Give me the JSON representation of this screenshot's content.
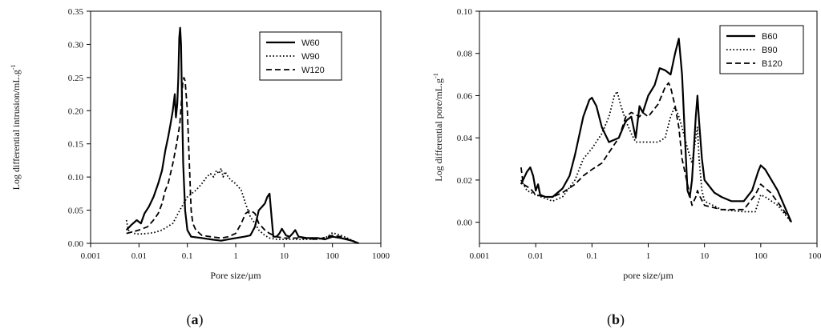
{
  "chart_data": [
    {
      "type": "line",
      "caption": {
        "open": "(",
        "letter": "a",
        "close": ")"
      },
      "xlabel": "Pore size/µm",
      "ylabel": "Log differential intrusion/mL.g",
      "ylabel_sup": "-1",
      "x_scale": "log",
      "xlim": [
        0.001,
        1000
      ],
      "ylim": [
        0.0,
        0.35
      ],
      "xticks": [
        "0.001",
        "0.01",
        "0.1",
        "1",
        "10",
        "100",
        "1000"
      ],
      "yticks": [
        "0.00",
        "0.05",
        "0.10",
        "0.15",
        "0.20",
        "0.25",
        "0.30",
        "0.35"
      ],
      "legend_position": "top-right",
      "series": [
        {
          "name": "W60",
          "style": "solid",
          "points": [
            [
              0.0055,
              0.02
            ],
            [
              0.007,
              0.028
            ],
            [
              0.009,
              0.035
            ],
            [
              0.011,
              0.03
            ],
            [
              0.013,
              0.045
            ],
            [
              0.016,
              0.055
            ],
            [
              0.02,
              0.07
            ],
            [
              0.025,
              0.09
            ],
            [
              0.03,
              0.11
            ],
            [
              0.035,
              0.14
            ],
            [
              0.04,
              0.16
            ],
            [
              0.045,
              0.18
            ],
            [
              0.05,
              0.2
            ],
            [
              0.055,
              0.225
            ],
            [
              0.058,
              0.19
            ],
            [
              0.062,
              0.21
            ],
            [
              0.065,
              0.25
            ],
            [
              0.068,
              0.31
            ],
            [
              0.071,
              0.325
            ],
            [
              0.074,
              0.3
            ],
            [
              0.078,
              0.2
            ],
            [
              0.082,
              0.12
            ],
            [
              0.09,
              0.05
            ],
            [
              0.1,
              0.02
            ],
            [
              0.12,
              0.01
            ],
            [
              0.2,
              0.008
            ],
            [
              0.3,
              0.006
            ],
            [
              0.5,
              0.004
            ],
            [
              0.7,
              0.006
            ],
            [
              1,
              0.008
            ],
            [
              1.5,
              0.01
            ],
            [
              2,
              0.012
            ],
            [
              2.5,
              0.025
            ],
            [
              3,
              0.05
            ],
            [
              3.5,
              0.055
            ],
            [
              4,
              0.06
            ],
            [
              4.5,
              0.07
            ],
            [
              5,
              0.075
            ],
            [
              5.5,
              0.04
            ],
            [
              6,
              0.01
            ],
            [
              7,
              0.01
            ],
            [
              8,
              0.015
            ],
            [
              9,
              0.022
            ],
            [
              11,
              0.012
            ],
            [
              13,
              0.01
            ],
            [
              15,
              0.015
            ],
            [
              17,
              0.02
            ],
            [
              20,
              0.01
            ],
            [
              30,
              0.008
            ],
            [
              50,
              0.008
            ],
            [
              70,
              0.006
            ],
            [
              100,
              0.01
            ],
            [
              150,
              0.008
            ],
            [
              250,
              0.004
            ],
            [
              350,
              0.0
            ]
          ]
        },
        {
          "name": "W90",
          "style": "dotted",
          "points": [
            [
              0.0055,
              0.035
            ],
            [
              0.006,
              0.02
            ],
            [
              0.008,
              0.015
            ],
            [
              0.01,
              0.014
            ],
            [
              0.015,
              0.015
            ],
            [
              0.02,
              0.016
            ],
            [
              0.03,
              0.02
            ],
            [
              0.05,
              0.03
            ],
            [
              0.07,
              0.05
            ],
            [
              0.1,
              0.07
            ],
            [
              0.15,
              0.08
            ],
            [
              0.2,
              0.09
            ],
            [
              0.25,
              0.1
            ],
            [
              0.3,
              0.105
            ],
            [
              0.35,
              0.1
            ],
            [
              0.4,
              0.11
            ],
            [
              0.45,
              0.105
            ],
            [
              0.5,
              0.113
            ],
            [
              0.55,
              0.1
            ],
            [
              0.6,
              0.108
            ],
            [
              0.7,
              0.1
            ],
            [
              0.8,
              0.095
            ],
            [
              1,
              0.09
            ],
            [
              1.3,
              0.08
            ],
            [
              1.6,
              0.06
            ],
            [
              2,
              0.04
            ],
            [
              2.5,
              0.03
            ],
            [
              3,
              0.02
            ],
            [
              4,
              0.012
            ],
            [
              5,
              0.008
            ],
            [
              7,
              0.006
            ],
            [
              10,
              0.006
            ],
            [
              20,
              0.006
            ],
            [
              50,
              0.006
            ],
            [
              80,
              0.01
            ],
            [
              100,
              0.016
            ],
            [
              150,
              0.012
            ],
            [
              250,
              0.005
            ],
            [
              350,
              0.0
            ]
          ]
        },
        {
          "name": "W120",
          "style": "dashed",
          "points": [
            [
              0.0055,
              0.015
            ],
            [
              0.008,
              0.018
            ],
            [
              0.01,
              0.02
            ],
            [
              0.015,
              0.025
            ],
            [
              0.02,
              0.035
            ],
            [
              0.025,
              0.045
            ],
            [
              0.03,
              0.06
            ],
            [
              0.035,
              0.08
            ],
            [
              0.04,
              0.09
            ],
            [
              0.05,
              0.12
            ],
            [
              0.06,
              0.15
            ],
            [
              0.07,
              0.18
            ],
            [
              0.075,
              0.21
            ],
            [
              0.08,
              0.24
            ],
            [
              0.085,
              0.25
            ],
            [
              0.09,
              0.245
            ],
            [
              0.1,
              0.2
            ],
            [
              0.11,
              0.12
            ],
            [
              0.12,
              0.05
            ],
            [
              0.13,
              0.03
            ],
            [
              0.15,
              0.02
            ],
            [
              0.2,
              0.012
            ],
            [
              0.3,
              0.01
            ],
            [
              0.5,
              0.008
            ],
            [
              0.7,
              0.01
            ],
            [
              1,
              0.015
            ],
            [
              1.3,
              0.03
            ],
            [
              1.6,
              0.045
            ],
            [
              2,
              0.05
            ],
            [
              2.5,
              0.045
            ],
            [
              3,
              0.03
            ],
            [
              4,
              0.02
            ],
            [
              5,
              0.015
            ],
            [
              7,
              0.01
            ],
            [
              10,
              0.008
            ],
            [
              20,
              0.008
            ],
            [
              50,
              0.006
            ],
            [
              100,
              0.012
            ],
            [
              150,
              0.01
            ],
            [
              250,
              0.004
            ],
            [
              350,
              0.0
            ]
          ]
        }
      ]
    },
    {
      "type": "line",
      "caption": {
        "open": "(",
        "letter": "b",
        "close": ")"
      },
      "xlabel": "pore size/µm",
      "ylabel": "Log differential pore/mL.g",
      "ylabel_sup": "-1",
      "x_scale": "log",
      "xlim": [
        0.001,
        1000
      ],
      "ylim": [
        -0.01,
        0.1
      ],
      "xticks": [
        "0.001",
        "0.01",
        "0.1",
        "1",
        "10",
        "100",
        "1000"
      ],
      "yticks": [
        "0.00",
        "0.02",
        "0.04",
        "0.06",
        "0.08",
        "0.10"
      ],
      "legend_position": "top-right",
      "series": [
        {
          "name": "B60",
          "style": "solid",
          "points": [
            [
              0.0055,
              0.018
            ],
            [
              0.007,
              0.024
            ],
            [
              0.008,
              0.026
            ],
            [
              0.009,
              0.022
            ],
            [
              0.01,
              0.015
            ],
            [
              0.011,
              0.018
            ],
            [
              0.012,
              0.013
            ],
            [
              0.015,
              0.012
            ],
            [
              0.02,
              0.012
            ],
            [
              0.03,
              0.016
            ],
            [
              0.04,
              0.022
            ],
            [
              0.05,
              0.032
            ],
            [
              0.07,
              0.05
            ],
            [
              0.09,
              0.058
            ],
            [
              0.1,
              0.059
            ],
            [
              0.12,
              0.055
            ],
            [
              0.15,
              0.045
            ],
            [
              0.2,
              0.038
            ],
            [
              0.3,
              0.04
            ],
            [
              0.4,
              0.048
            ],
            [
              0.5,
              0.05
            ],
            [
              0.6,
              0.04
            ],
            [
              0.7,
              0.055
            ],
            [
              0.8,
              0.052
            ],
            [
              1,
              0.06
            ],
            [
              1.3,
              0.065
            ],
            [
              1.6,
              0.073
            ],
            [
              2,
              0.072
            ],
            [
              2.5,
              0.07
            ],
            [
              3,
              0.08
            ],
            [
              3.5,
              0.087
            ],
            [
              4,
              0.07
            ],
            [
              4.5,
              0.04
            ],
            [
              5,
              0.015
            ],
            [
              5.5,
              0.012
            ],
            [
              6,
              0.02
            ],
            [
              7,
              0.05
            ],
            [
              7.5,
              0.06
            ],
            [
              8,
              0.048
            ],
            [
              9,
              0.03
            ],
            [
              10,
              0.02
            ],
            [
              15,
              0.014
            ],
            [
              20,
              0.012
            ],
            [
              30,
              0.01
            ],
            [
              50,
              0.01
            ],
            [
              70,
              0.015
            ],
            [
              90,
              0.024
            ],
            [
              100,
              0.027
            ],
            [
              120,
              0.025
            ],
            [
              200,
              0.015
            ],
            [
              350,
              0.0
            ]
          ]
        },
        {
          "name": "B90",
          "style": "dotted",
          "points": [
            [
              0.0055,
              0.02
            ],
            [
              0.007,
              0.015
            ],
            [
              0.01,
              0.013
            ],
            [
              0.02,
              0.01
            ],
            [
              0.03,
              0.012
            ],
            [
              0.05,
              0.02
            ],
            [
              0.07,
              0.03
            ],
            [
              0.1,
              0.035
            ],
            [
              0.15,
              0.042
            ],
            [
              0.2,
              0.05
            ],
            [
              0.25,
              0.06
            ],
            [
              0.28,
              0.062
            ],
            [
              0.32,
              0.056
            ],
            [
              0.4,
              0.048
            ],
            [
              0.5,
              0.042
            ],
            [
              0.6,
              0.038
            ],
            [
              0.8,
              0.038
            ],
            [
              1,
              0.038
            ],
            [
              1.5,
              0.038
            ],
            [
              2,
              0.04
            ],
            [
              2.5,
              0.05
            ],
            [
              3,
              0.055
            ],
            [
              3.5,
              0.05
            ],
            [
              4,
              0.045
            ],
            [
              5,
              0.035
            ],
            [
              6,
              0.028
            ],
            [
              7,
              0.04
            ],
            [
              7.5,
              0.045
            ],
            [
              8,
              0.03
            ],
            [
              9,
              0.015
            ],
            [
              10,
              0.01
            ],
            [
              20,
              0.006
            ],
            [
              50,
              0.005
            ],
            [
              80,
              0.005
            ],
            [
              100,
              0.013
            ],
            [
              120,
              0.012
            ],
            [
              200,
              0.008
            ],
            [
              350,
              0.0
            ]
          ]
        },
        {
          "name": "B120",
          "style": "dashed",
          "points": [
            [
              0.0055,
              0.026
            ],
            [
              0.006,
              0.018
            ],
            [
              0.008,
              0.016
            ],
            [
              0.01,
              0.013
            ],
            [
              0.015,
              0.012
            ],
            [
              0.02,
              0.012
            ],
            [
              0.03,
              0.014
            ],
            [
              0.05,
              0.018
            ],
            [
              0.07,
              0.022
            ],
            [
              0.1,
              0.025
            ],
            [
              0.15,
              0.028
            ],
            [
              0.2,
              0.033
            ],
            [
              0.3,
              0.04
            ],
            [
              0.4,
              0.05
            ],
            [
              0.5,
              0.052
            ],
            [
              0.7,
              0.05
            ],
            [
              0.8,
              0.052
            ],
            [
              1,
              0.05
            ],
            [
              1.5,
              0.056
            ],
            [
              2,
              0.064
            ],
            [
              2.3,
              0.066
            ],
            [
              2.5,
              0.064
            ],
            [
              3,
              0.055
            ],
            [
              3.5,
              0.045
            ],
            [
              4,
              0.03
            ],
            [
              5,
              0.018
            ],
            [
              6,
              0.008
            ],
            [
              7,
              0.012
            ],
            [
              7.5,
              0.015
            ],
            [
              8,
              0.013
            ],
            [
              10,
              0.008
            ],
            [
              20,
              0.006
            ],
            [
              50,
              0.006
            ],
            [
              80,
              0.013
            ],
            [
              100,
              0.018
            ],
            [
              150,
              0.014
            ],
            [
              250,
              0.006
            ],
            [
              350,
              0.0
            ]
          ]
        }
      ]
    }
  ]
}
